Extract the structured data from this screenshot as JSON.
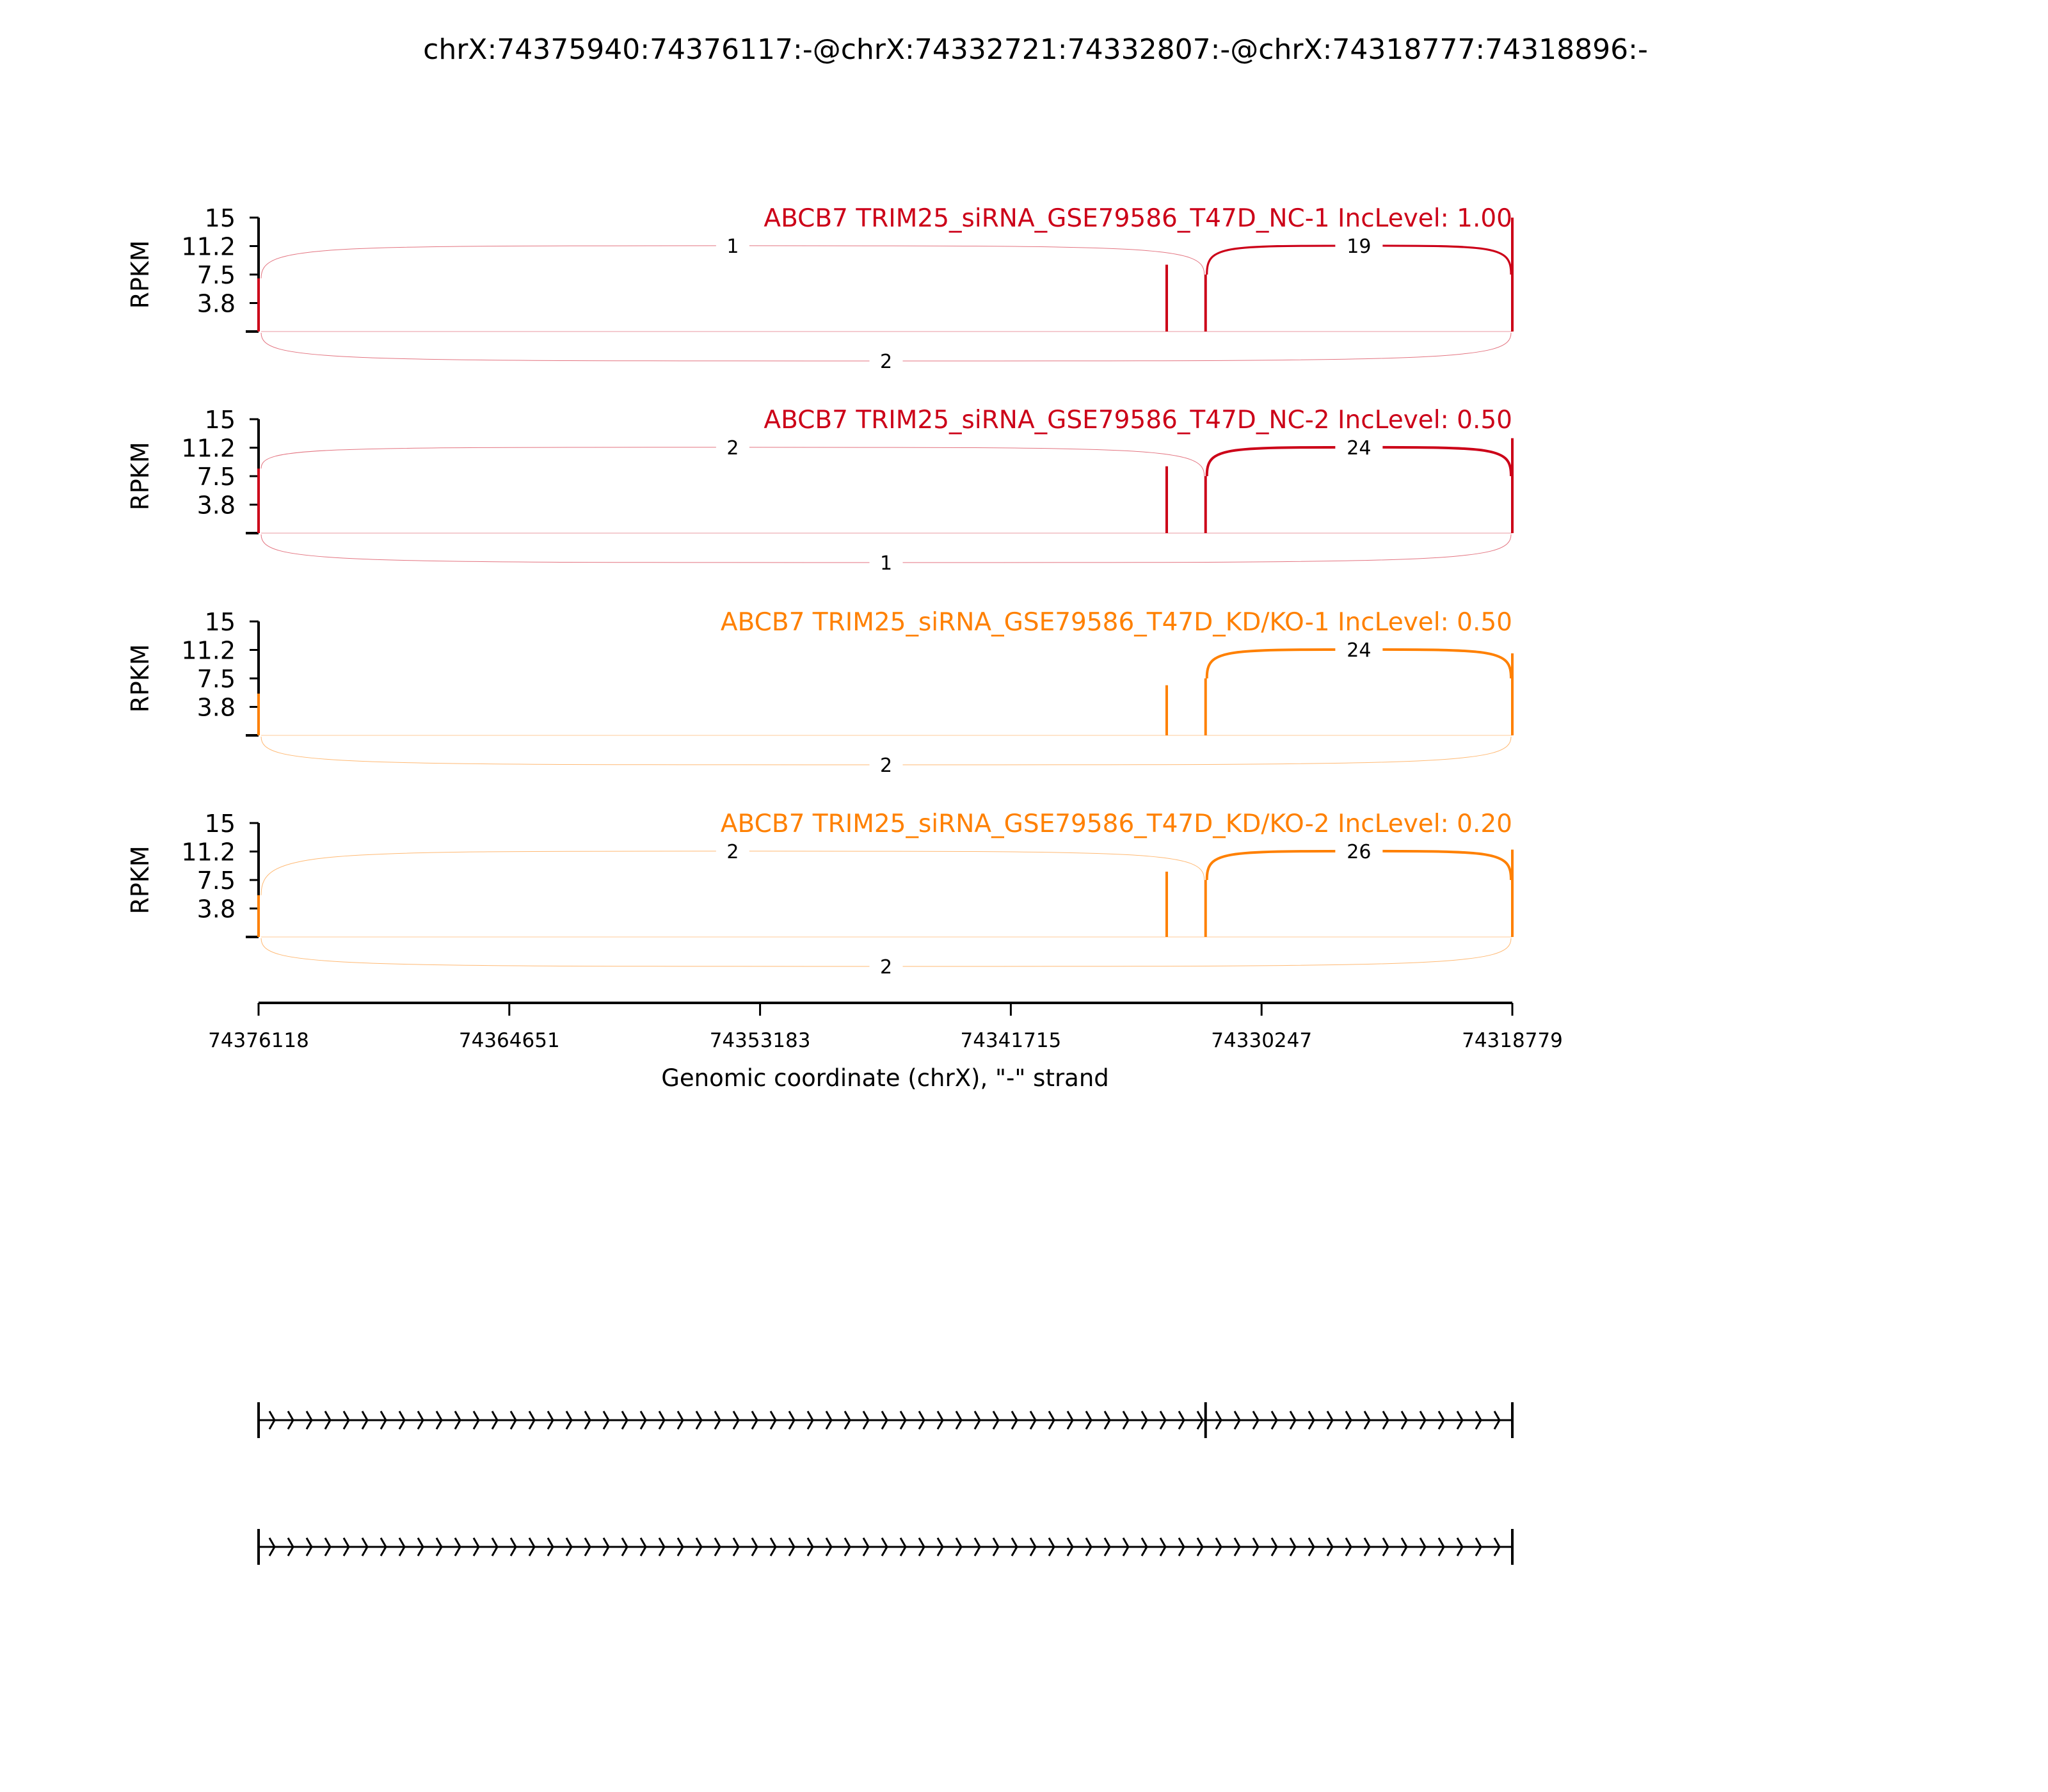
{
  "title": "chrX:74375940:74376117:-@chrX:74332721:74332807:-@chrX:74318777:74318896:-",
  "chart_data": {
    "type": "sashimi",
    "title": "chrX:74375940:74376117:-@chrX:74332721:74332807:-@chrX:74318777:74318896:-",
    "xlabel": "Genomic coordinate (chrX), \"-\" strand",
    "ylabel": "RPKM",
    "xlim": [
      74376118,
      74318779
    ],
    "x_ticks": [
      "74376118",
      "74364651",
      "74353183",
      "74341715",
      "74330247",
      "74318779"
    ],
    "ylim": [
      0,
      15
    ],
    "y_ticks": [
      "15",
      "11.2",
      "7.5",
      "3.8"
    ],
    "exons": {
      "upstream": [
        74375940,
        74376117
      ],
      "skipped": [
        74332721,
        74332807
      ],
      "downstream": [
        74318777,
        74318896
      ]
    },
    "panels": [
      {
        "name": "ABCB7 TRIM25_siRNA_GSE79586_T47D_NC-1 IncLevel: 1.00",
        "color": "#CC0018",
        "coverage": [
          {
            "x": 74376117,
            "y": 7.0
          },
          {
            "x": 74334585,
            "y": 8.8
          },
          {
            "x": 74332807,
            "y": 7.5
          },
          {
            "x": 74318779,
            "y": 15.0
          }
        ],
        "junctions": {
          "upstream_to_skipped": "1",
          "skipped_to_downstream": "19",
          "upstream_to_downstream": "2"
        }
      },
      {
        "name": "ABCB7 TRIM25_siRNA_GSE79586_T47D_NC-2 IncLevel: 0.50",
        "color": "#CC0018",
        "coverage": [
          {
            "x": 74376117,
            "y": 8.5
          },
          {
            "x": 74334585,
            "y": 8.8
          },
          {
            "x": 74332807,
            "y": 7.5
          },
          {
            "x": 74318779,
            "y": 12.5
          }
        ],
        "junctions": {
          "upstream_to_skipped": "2",
          "skipped_to_downstream": "24",
          "upstream_to_downstream": "1"
        }
      },
      {
        "name": "ABCB7 TRIM25_siRNA_GSE79586_T47D_KD/KO-1 IncLevel: 0.50",
        "color": "#FF8000",
        "coverage": [
          {
            "x": 74376117,
            "y": 5.5
          },
          {
            "x": 74334585,
            "y": 6.6
          },
          {
            "x": 74332807,
            "y": 7.5
          },
          {
            "x": 74318779,
            "y": 10.8
          }
        ],
        "junctions": {
          "upstream_to_skipped": "",
          "skipped_to_downstream": "24",
          "upstream_to_downstream": "2"
        }
      },
      {
        "name": "ABCB7 TRIM25_siRNA_GSE79586_T47D_KD/KO-2 IncLevel: 0.20",
        "color": "#FF8000",
        "coverage": [
          {
            "x": 74376117,
            "y": 5.5
          },
          {
            "x": 74334585,
            "y": 8.6
          },
          {
            "x": 74332807,
            "y": 7.5
          },
          {
            "x": 74318779,
            "y": 11.5
          }
        ],
        "junctions": {
          "upstream_to_skipped": "2",
          "skipped_to_downstream": "26",
          "upstream_to_downstream": "2"
        }
      }
    ],
    "gene_tracks": [
      {
        "exons": [
          74376117,
          74332807,
          74318779
        ],
        "strand": "-"
      },
      {
        "exons": [
          74376117,
          74318779
        ],
        "strand": "-"
      }
    ]
  }
}
